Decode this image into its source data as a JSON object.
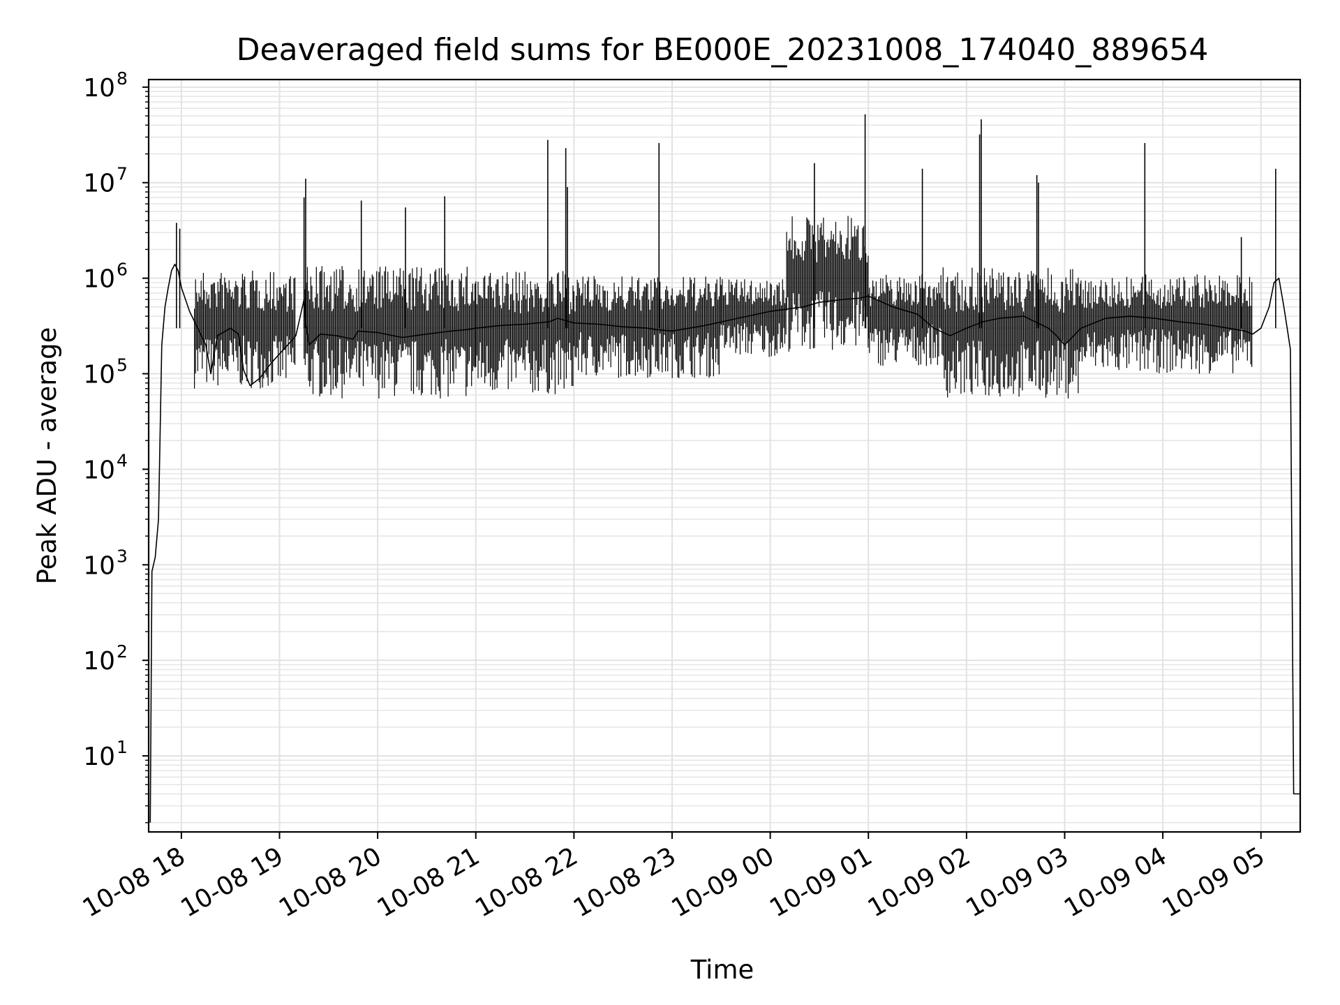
{
  "chart_data": {
    "type": "line",
    "title": "Deaveraged field sums for BE000E_20231008_174040_889654",
    "xlabel": "Time",
    "ylabel": "Peak ADU - average",
    "yscale": "log",
    "ylim": [
      1.6,
      120000000.0
    ],
    "xlim": [
      "2023-10-08 17:40",
      "2023-10-09 05:24"
    ],
    "grid": true,
    "x_ticks": [
      "10-08 18",
      "10-08 19",
      "10-08 20",
      "10-08 21",
      "10-08 22",
      "10-08 23",
      "10-09 00",
      "10-09 01",
      "10-09 02",
      "10-09 03",
      "10-09 04",
      "10-09 05"
    ],
    "y_ticks": [
      {
        "base": "10",
        "exp": "1",
        "value": 10
      },
      {
        "base": "10",
        "exp": "2",
        "value": 100
      },
      {
        "base": "10",
        "exp": "3",
        "value": 1000
      },
      {
        "base": "10",
        "exp": "4",
        "value": 10000
      },
      {
        "base": "10",
        "exp": "5",
        "value": 100000
      },
      {
        "base": "10",
        "exp": "6",
        "value": 1000000
      },
      {
        "base": "10",
        "exp": "7",
        "value": 10000000
      },
      {
        "base": "10",
        "exp": "8",
        "value": 100000000
      }
    ],
    "series": [
      {
        "color": "#000000",
        "x": [
          "2023-10-08 17:41",
          "2023-10-08 17:42",
          "2023-10-08 17:44",
          "2023-10-08 17:46",
          "2023-10-08 17:48",
          "2023-10-08 17:50",
          "2023-10-08 17:52",
          "2023-10-08 17:54",
          "2023-10-08 17:56",
          "2023-10-08 17:58",
          "2023-10-08 18:00",
          "2023-10-08 18:05",
          "2023-10-08 18:10",
          "2023-10-08 18:15",
          "2023-10-08 18:18",
          "2023-10-08 18:22",
          "2023-10-08 18:27",
          "2023-10-08 18:30",
          "2023-10-08 18:35",
          "2023-10-08 18:38",
          "2023-10-08 18:42",
          "2023-10-08 18:48",
          "2023-10-08 18:55",
          "2023-10-08 19:05",
          "2023-10-08 19:10",
          "2023-10-08 19:15",
          "2023-10-08 19:16",
          "2023-10-08 19:18",
          "2023-10-08 19:25",
          "2023-10-08 19:35",
          "2023-10-08 19:45",
          "2023-10-08 19:48",
          "2023-10-08 20:00",
          "2023-10-08 20:15",
          "2023-10-08 20:30",
          "2023-10-08 20:45",
          "2023-10-08 20:55",
          "2023-10-08 21:00",
          "2023-10-08 21:15",
          "2023-10-08 21:30",
          "2023-10-08 21:45",
          "2023-10-08 21:50",
          "2023-10-08 21:55",
          "2023-10-08 22:00",
          "2023-10-08 22:15",
          "2023-10-08 22:30",
          "2023-10-08 22:45",
          "2023-10-08 22:50",
          "2023-10-08 23:00",
          "2023-10-08 23:20",
          "2023-10-08 23:40",
          "2023-10-09 00:00",
          "2023-10-09 00:20",
          "2023-10-09 00:30",
          "2023-10-09 00:45",
          "2023-10-09 00:55",
          "2023-10-09 01:00",
          "2023-10-09 01:15",
          "2023-10-09 01:30",
          "2023-10-09 01:40",
          "2023-10-09 01:50",
          "2023-10-09 02:00",
          "2023-10-09 02:10",
          "2023-10-09 02:20",
          "2023-10-09 02:35",
          "2023-10-09 02:50",
          "2023-10-09 02:55",
          "2023-10-09 03:00",
          "2023-10-09 03:10",
          "2023-10-09 03:25",
          "2023-10-09 03:40",
          "2023-10-09 03:55",
          "2023-10-09 04:10",
          "2023-10-09 04:25",
          "2023-10-09 04:40",
          "2023-10-09 04:50",
          "2023-10-09 04:55",
          "2023-10-09 05:00",
          "2023-10-09 05:05",
          "2023-10-09 05:08",
          "2023-10-09 05:11",
          "2023-10-09 05:14",
          "2023-10-09 05:16",
          "2023-10-09 05:18",
          "2023-10-09 05:20",
          "2023-10-09 05:24"
        ],
        "y": [
          2,
          850,
          1200,
          3000,
          200000,
          500000,
          800000,
          1200000,
          1400000,
          1200000,
          800000,
          450000,
          300000,
          200000,
          100000,
          250000,
          280000,
          300000,
          260000,
          110000,
          75000,
          90000,
          130000,
          200000,
          250000,
          600000,
          350000,
          200000,
          260000,
          250000,
          230000,
          280000,
          270000,
          240000,
          260000,
          280000,
          290000,
          300000,
          320000,
          330000,
          350000,
          380000,
          360000,
          340000,
          330000,
          310000,
          300000,
          290000,
          280000,
          320000,
          380000,
          450000,
          500000,
          560000,
          600000,
          620000,
          650000,
          500000,
          420000,
          300000,
          250000,
          300000,
          350000,
          380000,
          400000,
          300000,
          250000,
          200000,
          300000,
          380000,
          400000,
          380000,
          350000,
          330000,
          300000,
          280000,
          260000,
          300000,
          500000,
          900000,
          1000000,
          500000,
          300000,
          180000,
          4,
          4
        ]
      }
    ],
    "spikes": [
      {
        "x": "2023-10-08 17:57",
        "y": 3800000
      },
      {
        "x": "2023-10-08 17:59",
        "y": 3300000
      },
      {
        "x": "2023-10-08 19:15",
        "y": 7000000
      },
      {
        "x": "2023-10-08 19:16",
        "y": 11000000
      },
      {
        "x": "2023-10-08 19:50",
        "y": 6500000
      },
      {
        "x": "2023-10-08 20:17",
        "y": 5500000
      },
      {
        "x": "2023-10-08 20:41",
        "y": 7200000
      },
      {
        "x": "2023-10-08 21:44",
        "y": 28000000
      },
      {
        "x": "2023-10-08 21:55",
        "y": 23000000
      },
      {
        "x": "2023-10-08 21:56",
        "y": 9000000
      },
      {
        "x": "2023-10-08 22:52",
        "y": 26000000
      },
      {
        "x": "2023-10-09 00:27",
        "y": 16000000
      },
      {
        "x": "2023-10-09 00:58",
        "y": 52000000
      },
      {
        "x": "2023-10-09 01:33",
        "y": 14000000
      },
      {
        "x": "2023-10-09 02:08",
        "y": 32000000
      },
      {
        "x": "2023-10-09 02:09",
        "y": 46000000
      },
      {
        "x": "2023-10-09 02:43",
        "y": 12000000
      },
      {
        "x": "2023-10-09 02:44",
        "y": 10000000
      },
      {
        "x": "2023-10-09 03:49",
        "y": 26000000
      },
      {
        "x": "2023-10-09 04:48",
        "y": 2700000
      },
      {
        "x": "2023-10-09 05:09",
        "y": 14000000
      }
    ],
    "noise_bands": [
      {
        "start": "2023-10-08 18:08",
        "end": "2023-10-08 19:10",
        "low": 70000,
        "high": 1200000
      },
      {
        "start": "2023-10-08 19:15",
        "end": "2023-10-08 21:00",
        "low": 55000,
        "high": 1350000
      },
      {
        "start": "2023-10-08 21:00",
        "end": "2023-10-08 22:00",
        "low": 60000,
        "high": 1200000
      },
      {
        "start": "2023-10-08 22:00",
        "end": "2023-10-08 23:30",
        "low": 90000,
        "high": 1050000
      },
      {
        "start": "2023-10-08 23:30",
        "end": "2023-10-09 00:10",
        "low": 150000,
        "high": 1000000
      },
      {
        "start": "2023-10-09 00:10",
        "end": "2023-10-09 01:00",
        "low": 170000,
        "high": 4500000
      },
      {
        "start": "2023-10-09 01:00",
        "end": "2023-10-09 01:45",
        "low": 120000,
        "high": 1100000
      },
      {
        "start": "2023-10-09 01:45",
        "end": "2023-10-09 03:10",
        "low": 55000,
        "high": 1300000
      },
      {
        "start": "2023-10-09 03:10",
        "end": "2023-10-09 04:55",
        "low": 100000,
        "high": 1100000
      }
    ]
  }
}
